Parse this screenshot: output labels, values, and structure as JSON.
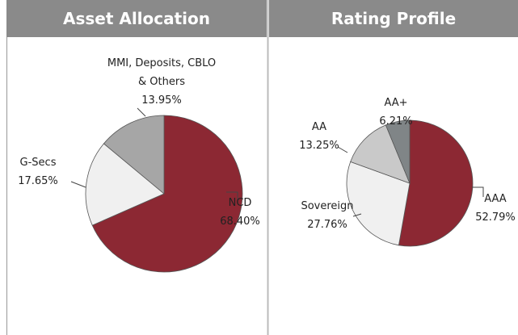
{
  "chart_data": [
    {
      "type": "pie",
      "title": "Asset Allocation",
      "categories": [
        "NCD",
        "G-Secs",
        "MMI, Deposits, CBLO & Others"
      ],
      "values": [
        68.4,
        17.65,
        13.95
      ],
      "value_labels": [
        "68.40%",
        "17.65%",
        "13.95%"
      ],
      "colors": [
        "#8c2833",
        "#f0f0f0",
        "#a6a6a6"
      ]
    },
    {
      "type": "pie",
      "title": "Rating Profile",
      "categories": [
        "AAA",
        "Sovereign",
        "AA",
        "AA+"
      ],
      "values": [
        52.79,
        27.76,
        13.25,
        6.21
      ],
      "value_labels": [
        "52.79%",
        "27.76%",
        "13.25%",
        "6.21%"
      ],
      "colors": [
        "#8c2833",
        "#f0f0f0",
        "#c9c9c9",
        "#808587"
      ]
    }
  ]
}
